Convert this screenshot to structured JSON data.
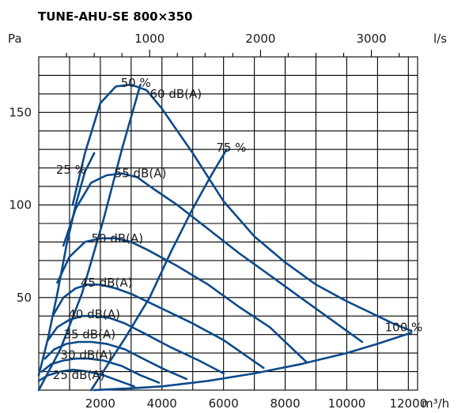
{
  "chart_data": {
    "type": "line",
    "title": "TUNE-AHU-SE 800×350",
    "y_unit": "Pa",
    "x_unit_bottom": "m³/h",
    "x_unit_top": "l/s",
    "xlim": [
      0,
      12300
    ],
    "ylim": [
      0,
      180
    ],
    "x_ticks": [
      2000,
      4000,
      6000,
      8000,
      10000,
      12000
    ],
    "x_tick_labels": [
      "2000",
      "4000",
      "6000",
      "8000",
      "10000",
      "12000"
    ],
    "x_top_ticks": [
      1000,
      2000,
      3000
    ],
    "x_top_tick_labels": [
      "1000",
      "2000",
      "3000"
    ],
    "y_ticks": [
      50,
      100,
      150
    ],
    "y_tick_labels": [
      "50",
      "100",
      "150"
    ],
    "grid": true,
    "series": [
      {
        "name": "60 dB(A)",
        "type": "sound",
        "x": [
          1100,
          1500,
          2000,
          2500,
          3000,
          3500,
          4000,
          4500,
          5000,
          5500,
          6000,
          7000,
          8000,
          9000,
          10000,
          11500,
          12100
        ],
        "y": [
          100,
          128,
          155,
          164,
          165,
          162,
          152,
          140,
          128,
          115,
          102,
          83,
          69,
          57,
          48,
          36,
          32
        ]
      },
      {
        "name": "55 dB(A)",
        "type": "sound",
        "x": [
          800,
          1200,
          1700,
          2200,
          2700,
          3200,
          3700,
          4500,
          5500,
          6500,
          7500,
          8500,
          9500,
          10500
        ],
        "y": [
          78,
          98,
          112,
          116,
          117,
          115,
          109,
          100,
          87,
          74,
          62,
          50,
          38,
          26
        ]
      },
      {
        "name": "50 dB(A)",
        "type": "sound",
        "x": [
          600,
          1000,
          1500,
          2000,
          2500,
          3000,
          3500,
          4500,
          5500,
          6500,
          7500,
          8700
        ],
        "y": [
          58,
          72,
          80,
          82,
          82,
          80,
          76,
          67,
          57,
          45,
          34,
          15
        ]
      },
      {
        "name": "45 dB(A)",
        "type": "sound",
        "x": [
          450,
          800,
          1200,
          1600,
          2000,
          2500,
          3000,
          4000,
          5000,
          6000,
          7300
        ],
        "y": [
          40,
          50,
          55,
          57,
          57,
          55,
          52,
          44,
          36,
          27,
          12
        ]
      },
      {
        "name": "40 dB(A)",
        "type": "sound",
        "x": [
          300,
          600,
          1000,
          1400,
          1800,
          2300,
          2800,
          3500,
          4300,
          5200,
          6000
        ],
        "y": [
          27,
          34,
          38,
          40,
          40,
          39,
          36,
          30,
          23,
          16,
          9
        ]
      },
      {
        "name": "35 dB(A)",
        "type": "sound",
        "x": [
          200,
          500,
          900,
          1300,
          1700,
          2200,
          2800,
          3500,
          4100,
          4800
        ],
        "y": [
          17,
          22,
          25,
          26,
          26,
          25,
          22,
          16,
          11,
          6
        ]
      },
      {
        "name": "30 dB(A)",
        "type": "sound",
        "x": [
          100,
          400,
          800,
          1200,
          1600,
          2100,
          2700,
          3300,
          3900
        ],
        "y": [
          10,
          14,
          16,
          17,
          17,
          16,
          13,
          8,
          4
        ]
      },
      {
        "name": "25 dB(A)",
        "type": "sound",
        "x": [
          0,
          300,
          700,
          1100,
          1600,
          2100,
          2600,
          3100
        ],
        "y": [
          5,
          8,
          10,
          11,
          10,
          8,
          5,
          2
        ]
      },
      {
        "name": "25 %",
        "type": "speed",
        "x": [
          0,
          300,
          600,
          900,
          1200,
          1500,
          1800
        ],
        "y": [
          8,
          28,
          52,
          78,
          100,
          118,
          128
        ]
      },
      {
        "name": "50 %",
        "type": "speed",
        "x": [
          0,
          700,
          1400,
          2100,
          2700,
          3300
        ],
        "y": [
          0,
          22,
          52,
          92,
          130,
          165
        ]
      },
      {
        "name": "75 %",
        "type": "speed",
        "x": [
          1700,
          2800,
          3600,
          4300,
          5000,
          5600,
          6100
        ],
        "y": [
          0,
          28,
          50,
          75,
          98,
          116,
          130
        ]
      },
      {
        "name": "100 %",
        "type": "speed",
        "x": [
          1800,
          3000,
          4000,
          5500,
          7000,
          8500,
          10000,
          11000,
          12100
        ],
        "y": [
          0,
          1,
          2,
          5,
          9,
          14,
          20,
          25,
          31
        ]
      }
    ],
    "annotations": [
      {
        "text": "60 dB(A)",
        "x": 4450,
        "y": 160
      },
      {
        "text": "55 dB(A)",
        "x": 3300,
        "y": 117
      },
      {
        "text": "50 dB(A)",
        "x": 2550,
        "y": 82
      },
      {
        "text": "45 dB(A)",
        "x": 2200,
        "y": 58
      },
      {
        "text": "40 dB(A)",
        "x": 1800,
        "y": 41
      },
      {
        "text": "35 dB(A)",
        "x": 1650,
        "y": 30
      },
      {
        "text": "30 dB(A)",
        "x": 1550,
        "y": 19
      },
      {
        "text": "25 dB(A)",
        "x": 1300,
        "y": 8
      },
      {
        "text": "25 %",
        "x": 1050,
        "y": 119
      },
      {
        "text": "50 %",
        "x": 3150,
        "y": 166
      },
      {
        "text": "75 %",
        "x": 6250,
        "y": 131
      },
      {
        "text": "100 %",
        "x": 11850,
        "y": 34
      }
    ],
    "colors": {
      "curves": "#0b4a8a",
      "grid": "#000000"
    }
  }
}
